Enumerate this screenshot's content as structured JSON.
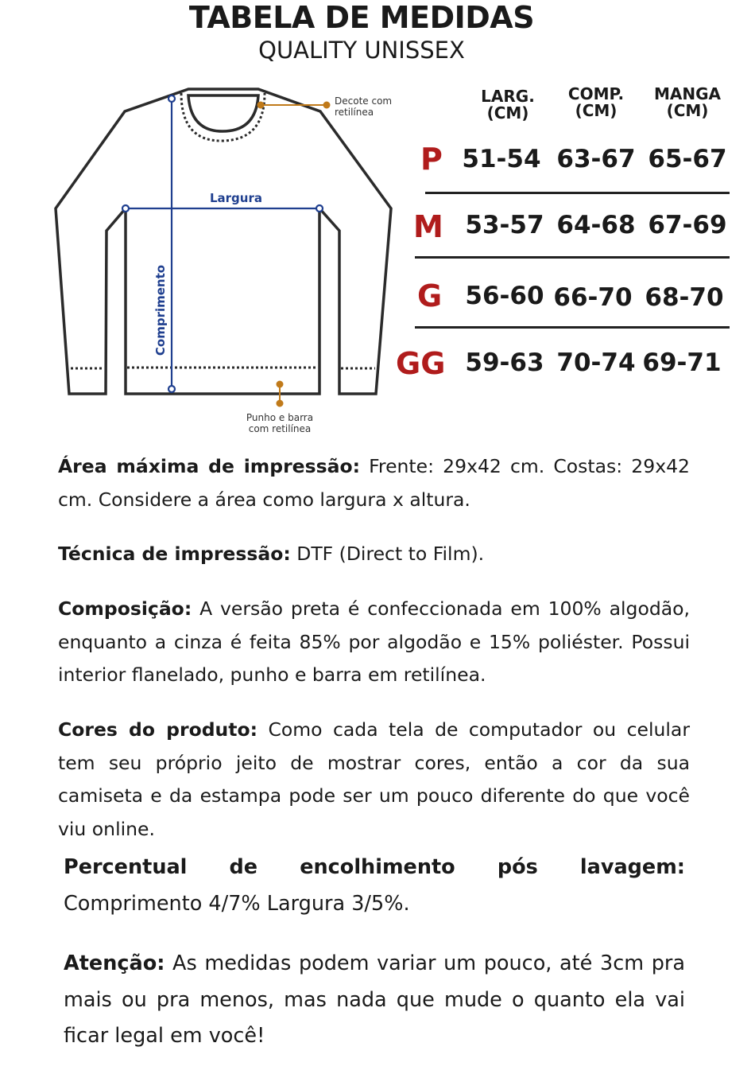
{
  "header": {
    "title": "TABELA DE MEDIDAS",
    "subtitle": "QUALITY UNISSEX"
  },
  "diagram": {
    "width_label": "Largura",
    "length_label": "Comprimento",
    "neck_note": [
      "Decote com",
      "retilínea"
    ],
    "hem_note": [
      "Punho e barra",
      "com retilínea"
    ],
    "colors": {
      "outline": "#2b2b2b",
      "measure": "#1f3f8f",
      "note": "#c07a1a"
    }
  },
  "size_table": {
    "columns": [
      [
        "LARG.",
        "(CM)"
      ],
      [
        "COMP.",
        "(CM)"
      ],
      [
        "MANGA",
        "(CM)"
      ]
    ],
    "rows": [
      {
        "size": "P",
        "values": [
          "51-54",
          "63-67",
          "65-67"
        ]
      },
      {
        "size": "M",
        "values": [
          "53-57",
          "64-68",
          "67-69"
        ]
      },
      {
        "size": "G",
        "values": [
          "56-60",
          "66-70",
          "68-70"
        ]
      },
      {
        "size": "GG",
        "values": [
          "59-63",
          "70-74",
          "69-71"
        ]
      }
    ],
    "size_color": "#b01c1c"
  },
  "info": [
    {
      "label": "Área máxima de impressão:",
      "text": " Frente: 29x42 cm. Costas: 29x42 cm. Considere a área como largura x altura."
    },
    {
      "label": "Técnica de impressão:",
      "text": " DTF (Direct to Film)."
    },
    {
      "label": "Composição:",
      "text": " A versão preta é confeccionada em 100% algodão, enquanto a cinza é feita 85% por algodão e 15% poliéster. Possui interior flanelado, punho e barra em retilínea."
    },
    {
      "label": "Cores do produto:",
      "text": " Como cada tela de computador ou celular tem seu próprio jeito de mostrar cores, então a cor da sua camiseta e da estampa pode ser um pouco diferente do que você viu online."
    },
    {
      "label": "Percentual de encolhimento pós lavagem:",
      "text": "Comprimento 4/7% Largura 3/5%."
    },
    {
      "label": "Atenção:",
      "text": " As medidas podem variar um pouco, até 3cm pra mais ou pra menos, mas nada que mude o quanto ela vai ficar legal em você!"
    }
  ]
}
